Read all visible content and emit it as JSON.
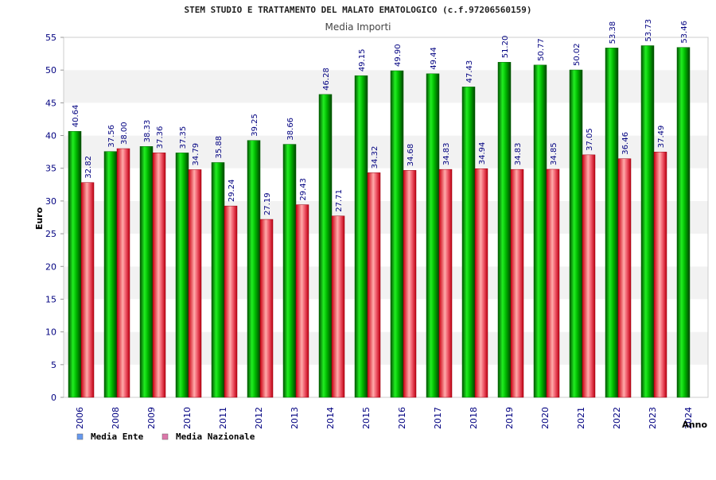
{
  "chart_data": {
    "type": "bar",
    "title": "STEM STUDIO E TRATTAMENTO DEL MALATO EMATOLOGICO (c.f.97206560159)",
    "subtitle": "Media Importi",
    "xlabel": "Anno",
    "ylabel": "Euro",
    "ylim": [
      0,
      55
    ],
    "yticks": [
      "0",
      "5",
      "10",
      "15",
      "20",
      "25",
      "30",
      "35",
      "40",
      "45",
      "50",
      "55"
    ],
    "grid": "horizontal bands",
    "legend_position": "bottom-left",
    "categories": [
      "2006",
      "2008",
      "2009",
      "2010",
      "2011",
      "2012",
      "2013",
      "2014",
      "2015",
      "2016",
      "2017",
      "2018",
      "2019",
      "2020",
      "2021",
      "2022",
      "2023",
      "2024"
    ],
    "series": [
      {
        "name": "Media Ente",
        "color": "#00aa00",
        "legend_color": "#6699ee",
        "values": [
          40.64,
          37.56,
          38.33,
          37.35,
          35.88,
          39.25,
          38.66,
          46.28,
          49.15,
          49.9,
          49.44,
          47.43,
          51.2,
          50.77,
          50.02,
          53.38,
          53.73,
          53.46
        ],
        "labels": [
          "40.64",
          "37.56",
          "38.33",
          "37.35",
          "35.88",
          "39.25",
          "38.66",
          "46.28",
          "49.15",
          "49.90",
          "49.44",
          "47.43",
          "51.20",
          "50.77",
          "50.02",
          "53.38",
          "53.73",
          "53.46"
        ]
      },
      {
        "name": "Media Nazionale",
        "color": "#dd1122",
        "legend_color": "#dd77aa",
        "values": [
          32.82,
          38.0,
          37.36,
          34.79,
          29.24,
          27.19,
          29.43,
          27.71,
          34.32,
          34.68,
          34.83,
          34.94,
          34.83,
          34.85,
          37.05,
          36.46,
          37.49,
          null
        ],
        "labels": [
          "32.82",
          "38.00",
          "37.36",
          "34.79",
          "29.24",
          "27.19",
          "29.43",
          "27.71",
          "34.32",
          "34.68",
          "34.83",
          "34.94",
          "34.83",
          "34.85",
          "37.05",
          "36.46",
          "37.49",
          null
        ]
      }
    ]
  }
}
